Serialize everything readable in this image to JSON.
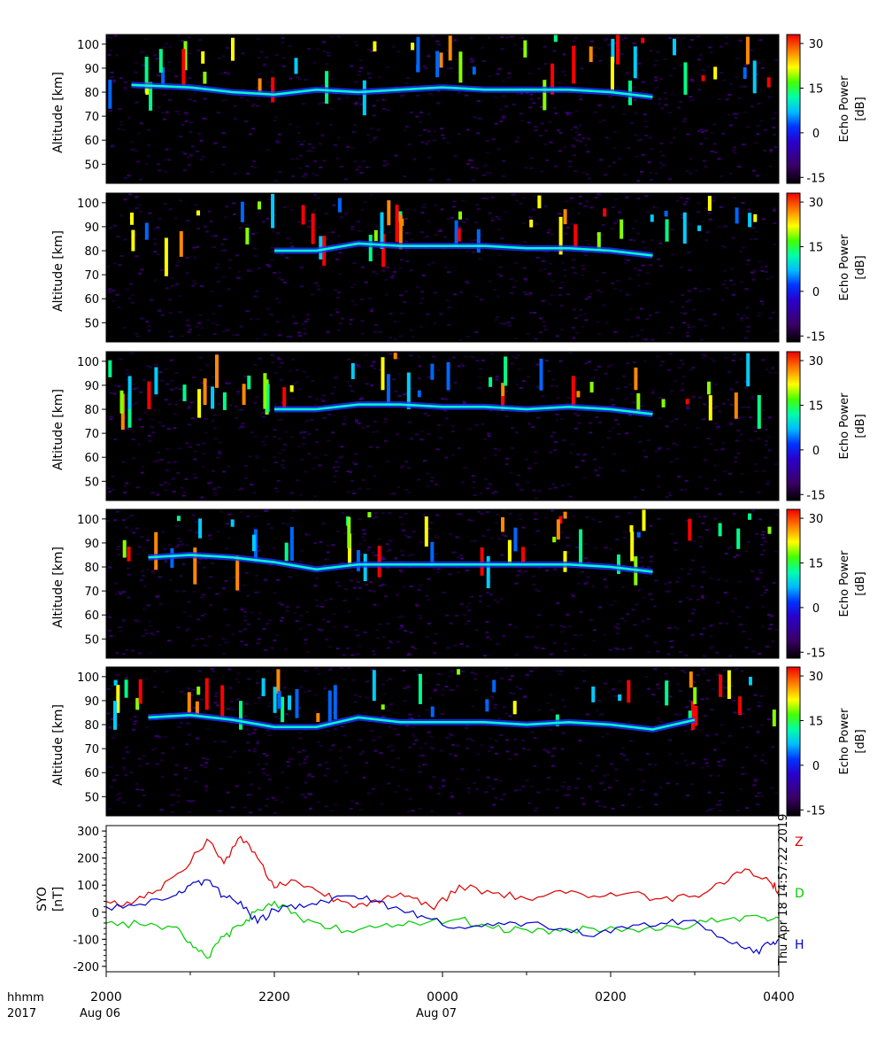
{
  "chart_data": [
    {
      "type": "heatmap",
      "panel": 1,
      "ylabel": "Altitude [km]",
      "yticks": [
        50,
        60,
        70,
        80,
        90,
        100
      ],
      "ylim": [
        42,
        104
      ],
      "colorbar_label": "Echo Power [dB]",
      "colorbar_ticks": [
        -15,
        0,
        15,
        30
      ],
      "clim": [
        -17,
        33
      ],
      "echo_layer": [
        {
          "t": 0.3,
          "alt": 83
        },
        {
          "t": 1.0,
          "alt": 82
        },
        {
          "t": 1.5,
          "alt": 80
        },
        {
          "t": 2.0,
          "alt": 79
        },
        {
          "t": 2.5,
          "alt": 81
        },
        {
          "t": 3.0,
          "alt": 80
        },
        {
          "t": 3.5,
          "alt": 81
        },
        {
          "t": 4.0,
          "alt": 82
        },
        {
          "t": 4.5,
          "alt": 81
        },
        {
          "t": 5.0,
          "alt": 81
        },
        {
          "t": 5.5,
          "alt": 81
        },
        {
          "t": 6.0,
          "alt": 80
        },
        {
          "t": 6.5,
          "alt": 78
        }
      ]
    },
    {
      "type": "heatmap",
      "panel": 2,
      "ylabel": "Altitude [km]",
      "yticks": [
        50,
        60,
        70,
        80,
        90,
        100
      ],
      "ylim": [
        42,
        104
      ],
      "colorbar_label": "Echo Power [dB]",
      "colorbar_ticks": [
        -15,
        0,
        15,
        30
      ],
      "clim": [
        -17,
        33
      ],
      "echo_layer": [
        {
          "t": 2.0,
          "alt": 80
        },
        {
          "t": 2.5,
          "alt": 80
        },
        {
          "t": 3.0,
          "alt": 83
        },
        {
          "t": 3.5,
          "alt": 82
        },
        {
          "t": 4.0,
          "alt": 82
        },
        {
          "t": 4.5,
          "alt": 82
        },
        {
          "t": 5.0,
          "alt": 81
        },
        {
          "t": 5.5,
          "alt": 81
        },
        {
          "t": 6.0,
          "alt": 80
        },
        {
          "t": 6.5,
          "alt": 78
        }
      ]
    },
    {
      "type": "heatmap",
      "panel": 3,
      "ylabel": "Altitude [km]",
      "yticks": [
        50,
        60,
        70,
        80,
        90,
        100
      ],
      "ylim": [
        42,
        104
      ],
      "colorbar_label": "Echo Power [dB]",
      "colorbar_ticks": [
        -15,
        0,
        15,
        30
      ],
      "clim": [
        -17,
        33
      ],
      "echo_layer": [
        {
          "t": 2.0,
          "alt": 80
        },
        {
          "t": 2.5,
          "alt": 80
        },
        {
          "t": 3.0,
          "alt": 82
        },
        {
          "t": 3.5,
          "alt": 82
        },
        {
          "t": 4.0,
          "alt": 81
        },
        {
          "t": 4.5,
          "alt": 81
        },
        {
          "t": 5.0,
          "alt": 80
        },
        {
          "t": 5.5,
          "alt": 81
        },
        {
          "t": 6.0,
          "alt": 80
        },
        {
          "t": 6.5,
          "alt": 78
        }
      ]
    },
    {
      "type": "heatmap",
      "panel": 4,
      "ylabel": "Altitude [km]",
      "yticks": [
        50,
        60,
        70,
        80,
        90,
        100
      ],
      "ylim": [
        42,
        104
      ],
      "colorbar_label": "Echo Power [dB]",
      "colorbar_ticks": [
        -15,
        0,
        15,
        30
      ],
      "clim": [
        -17,
        33
      ],
      "echo_layer": [
        {
          "t": 0.5,
          "alt": 84
        },
        {
          "t": 1.0,
          "alt": 85
        },
        {
          "t": 1.5,
          "alt": 84
        },
        {
          "t": 2.0,
          "alt": 82
        },
        {
          "t": 2.5,
          "alt": 79
        },
        {
          "t": 3.0,
          "alt": 81
        },
        {
          "t": 3.5,
          "alt": 81
        },
        {
          "t": 4.0,
          "alt": 81
        },
        {
          "t": 4.5,
          "alt": 81
        },
        {
          "t": 5.0,
          "alt": 81
        },
        {
          "t": 5.5,
          "alt": 81
        },
        {
          "t": 6.0,
          "alt": 80
        },
        {
          "t": 6.5,
          "alt": 78
        }
      ]
    },
    {
      "type": "heatmap",
      "panel": 5,
      "ylabel": "Altitude [km]",
      "yticks": [
        50,
        60,
        70,
        80,
        90,
        100
      ],
      "ylim": [
        42,
        104
      ],
      "colorbar_label": "Echo Power [dB]",
      "colorbar_ticks": [
        -15,
        0,
        15,
        30
      ],
      "clim": [
        -17,
        33
      ],
      "echo_layer": [
        {
          "t": 0.5,
          "alt": 83
        },
        {
          "t": 1.0,
          "alt": 84
        },
        {
          "t": 1.5,
          "alt": 82
        },
        {
          "t": 2.0,
          "alt": 79
        },
        {
          "t": 2.5,
          "alt": 79
        },
        {
          "t": 3.0,
          "alt": 83
        },
        {
          "t": 3.5,
          "alt": 81
        },
        {
          "t": 4.0,
          "alt": 81
        },
        {
          "t": 4.5,
          "alt": 81
        },
        {
          "t": 5.0,
          "alt": 80
        },
        {
          "t": 5.5,
          "alt": 81
        },
        {
          "t": 6.0,
          "alt": 80
        },
        {
          "t": 6.5,
          "alt": 78
        },
        {
          "t": 7.0,
          "alt": 82
        }
      ]
    },
    {
      "type": "line",
      "ylabel": "SYO\n[nT]",
      "ylim": [
        -220,
        320
      ],
      "yticks": [
        -200,
        -100,
        0,
        100,
        200,
        300
      ],
      "xlim": [
        0,
        8
      ],
      "series": [
        {
          "name": "Z",
          "color": "#dd0000",
          "x": [
            0,
            0.3,
            0.6,
            0.9,
            1.2,
            1.4,
            1.6,
            1.8,
            2.0,
            2.2,
            2.5,
            2.8,
            3.0,
            3.3,
            3.6,
            3.9,
            4.2,
            4.6,
            5.0,
            5.4,
            5.8,
            6.2,
            6.6,
            7.0,
            7.3,
            7.6,
            7.9,
            8.0
          ],
          "values": [
            40,
            30,
            80,
            150,
            270,
            180,
            280,
            200,
            90,
            120,
            80,
            40,
            30,
            50,
            60,
            10,
            100,
            70,
            50,
            80,
            60,
            70,
            50,
            60,
            110,
            160,
            110,
            80
          ]
        },
        {
          "name": "D",
          "color": "#00cc00",
          "x": [
            0,
            0.4,
            0.8,
            1.0,
            1.2,
            1.4,
            1.6,
            1.8,
            2.0,
            2.3,
            2.6,
            3.0,
            3.4,
            3.8,
            4.2,
            4.6,
            5.0,
            5.4,
            5.8,
            6.2,
            6.6,
            7.0,
            7.4,
            7.8,
            8.0
          ],
          "values": [
            -40,
            -45,
            -55,
            -110,
            -170,
            -90,
            -50,
            10,
            40,
            -20,
            -60,
            -65,
            -55,
            -40,
            -25,
            -60,
            -65,
            -70,
            -60,
            -60,
            -65,
            -45,
            -25,
            -20,
            -20
          ]
        },
        {
          "name": "H",
          "color": "#0000cc",
          "x": [
            0,
            0.4,
            0.8,
            1.0,
            1.2,
            1.4,
            1.6,
            1.8,
            2.0,
            2.3,
            2.6,
            2.9,
            3.2,
            3.5,
            3.8,
            4.2,
            4.6,
            5.0,
            5.4,
            5.8,
            6.2,
            6.6,
            7.0,
            7.4,
            7.7,
            7.9,
            8.0
          ],
          "values": [
            20,
            30,
            60,
            100,
            120,
            60,
            40,
            -40,
            10,
            30,
            40,
            60,
            40,
            10,
            -20,
            -55,
            -50,
            -40,
            -60,
            -90,
            -60,
            -40,
            -30,
            -110,
            -150,
            -120,
            -100
          ]
        }
      ]
    }
  ],
  "x_axis": {
    "ticks": [
      "2000",
      "2200",
      "0000",
      "0200",
      "0400"
    ],
    "row_label": "hhmm",
    "year": "2017",
    "date_labels": [
      "Aug 06",
      "Aug 07"
    ]
  },
  "labels": {
    "ylabel_alt": "Altitude [km]",
    "colorbar_line1": "Echo Power",
    "colorbar_line2": "[dB]",
    "syo_line1": "SYO",
    "syo_line2": "[nT]",
    "timestamp": "Thu Apr 18 14:57:22 2019"
  },
  "colors": {
    "background": "#000000",
    "z": "#dd0000",
    "d": "#00cc00",
    "h": "#0000cc"
  }
}
